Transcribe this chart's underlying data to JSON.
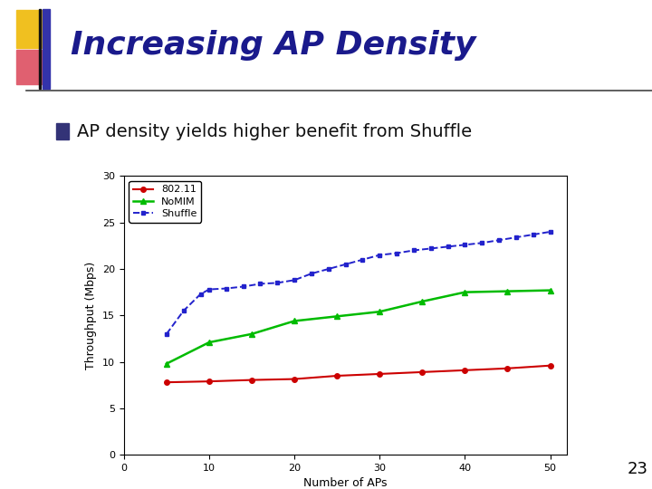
{
  "title": "Increasing AP Density",
  "bullet_text": "AP density yields higher benefit from Shuffle",
  "xlabel": "Number of APs",
  "ylabel": "Throughput (Mbps)",
  "xlim": [
    0,
    52
  ],
  "ylim": [
    0,
    30
  ],
  "xticks": [
    0,
    10,
    20,
    30,
    40,
    50
  ],
  "yticks": [
    0,
    5,
    10,
    15,
    20,
    25,
    30
  ],
  "x_802": [
    5,
    10,
    15,
    20,
    25,
    30,
    35,
    40,
    45,
    50
  ],
  "y_802": [
    7.8,
    7.9,
    8.05,
    8.15,
    8.5,
    8.7,
    8.9,
    9.1,
    9.3,
    9.6
  ],
  "x_nomim": [
    5,
    10,
    15,
    20,
    25,
    30,
    35,
    40,
    45,
    50
  ],
  "y_nomim": [
    9.8,
    12.1,
    13.0,
    14.4,
    14.9,
    15.4,
    16.5,
    17.5,
    17.6,
    17.7
  ],
  "x_shuffle": [
    5,
    7,
    9,
    10,
    12,
    14,
    16,
    18,
    20,
    22,
    24,
    26,
    28,
    30,
    32,
    34,
    36,
    38,
    40,
    42,
    44,
    46,
    48,
    50
  ],
  "y_shuffle": [
    13.0,
    15.5,
    17.3,
    17.8,
    17.9,
    18.1,
    18.4,
    18.5,
    18.8,
    19.5,
    20.0,
    20.5,
    21.0,
    21.5,
    21.7,
    22.0,
    22.2,
    22.4,
    22.6,
    22.8,
    23.1,
    23.4,
    23.7,
    24.0
  ],
  "color_802": "#cc0000",
  "color_nomim": "#00bb00",
  "color_shuffle": "#2222cc",
  "title_color": "#1a1a8c",
  "title_fontsize": 26,
  "bullet_fontsize": 14,
  "label_fontsize": 9,
  "legend_fontsize": 8,
  "page_number": "23",
  "deco_yellow": "#f0c020",
  "deco_pink": "#e06070",
  "deco_blue": "#3333aa"
}
